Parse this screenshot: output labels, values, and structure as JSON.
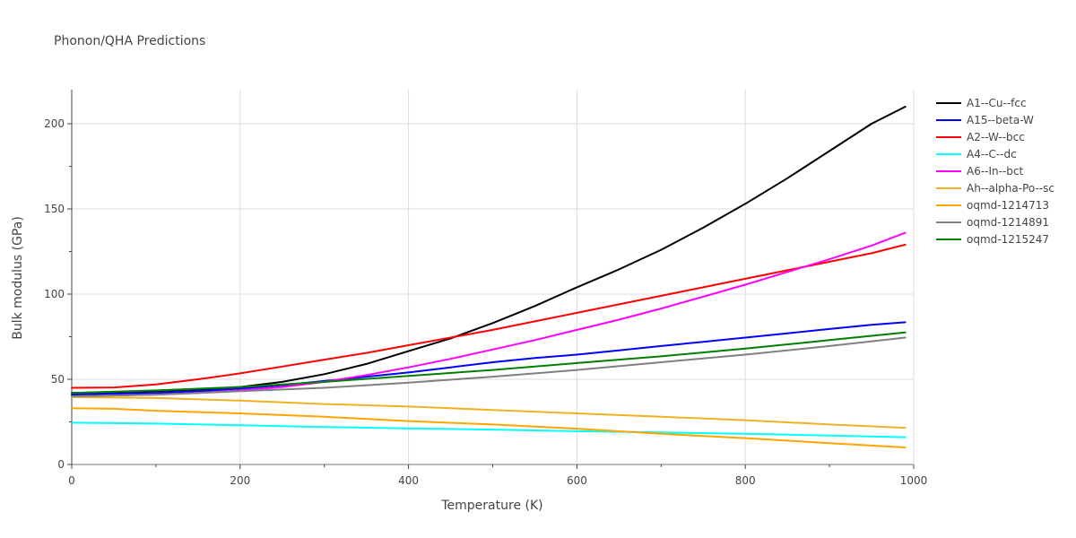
{
  "chart_data": {
    "type": "line",
    "title": "Phonon/QHA Predictions",
    "xlabel": "Temperature (K)",
    "ylabel": "Bulk modulus (GPa)",
    "xlim": [
      0,
      1000
    ],
    "ylim": [
      0,
      220
    ],
    "xticks": [
      0,
      200,
      400,
      600,
      800,
      1000
    ],
    "yticks": [
      0,
      50,
      100,
      150,
      200
    ],
    "grid": true,
    "legend_position": "right",
    "series": [
      {
        "name": "A1--Cu--fcc",
        "color": "#000000",
        "x": [
          0,
          50,
          100,
          150,
          200,
          250,
          300,
          350,
          400,
          450,
          500,
          550,
          600,
          650,
          700,
          750,
          800,
          850,
          900,
          950,
          990
        ],
        "y": [
          42,
          42.5,
          43,
          44,
          45.5,
          48.5,
          53,
          59,
          66.5,
          74,
          83,
          93,
          104,
          114.5,
          126,
          139,
          153,
          168,
          184,
          200,
          210
        ]
      },
      {
        "name": "A15--beta-W",
        "color": "#0000ff",
        "x": [
          0,
          50,
          100,
          150,
          200,
          250,
          300,
          350,
          400,
          450,
          500,
          550,
          600,
          650,
          700,
          750,
          800,
          850,
          900,
          950,
          990
        ],
        "y": [
          41,
          41.5,
          42,
          43,
          44.5,
          46.5,
          49,
          51.5,
          54,
          57,
          60,
          62.5,
          64.5,
          67,
          69.5,
          72,
          74.5,
          77,
          79.5,
          82,
          83.5
        ]
      },
      {
        "name": "A2--W--bcc",
        "color": "#ff0000",
        "x": [
          0,
          50,
          100,
          150,
          200,
          250,
          300,
          350,
          400,
          450,
          500,
          550,
          600,
          650,
          700,
          750,
          800,
          850,
          900,
          950,
          990
        ],
        "y": [
          45,
          45.2,
          47,
          50,
          53.5,
          57.5,
          61.5,
          65.5,
          70,
          74.5,
          79,
          84,
          89,
          94,
          99,
          104,
          109,
          114,
          119,
          124,
          129
        ]
      },
      {
        "name": "A4--C--dc",
        "color": "#00ffff",
        "x": [
          0,
          100,
          200,
          300,
          400,
          500,
          600,
          700,
          800,
          900,
          990
        ],
        "y": [
          24.5,
          24,
          23,
          22,
          21.2,
          20.5,
          19.5,
          18.8,
          18,
          17,
          16
        ]
      },
      {
        "name": "A6--In--bct",
        "color": "#ff00ff",
        "x": [
          0,
          50,
          100,
          150,
          200,
          250,
          300,
          350,
          400,
          450,
          500,
          550,
          600,
          650,
          700,
          750,
          800,
          850,
          900,
          950,
          990
        ],
        "y": [
          40,
          40.5,
          41,
          42,
          43.5,
          45.5,
          48.5,
          52.5,
          57,
          62,
          67.5,
          73,
          79,
          85,
          91.5,
          98.5,
          105.5,
          113,
          120.5,
          128.5,
          136
        ]
      },
      {
        "name": "Ah--alpha-Po--sc",
        "color": "#f0b020",
        "x": [
          0,
          100,
          200,
          300,
          400,
          500,
          600,
          700,
          800,
          900,
          990
        ],
        "y": [
          39.5,
          39,
          37.5,
          35.5,
          34,
          32,
          30,
          28,
          26,
          23.5,
          21.5
        ]
      },
      {
        "name": "oqmd-1214713",
        "color": "#ffa500",
        "x": [
          0,
          50,
          100,
          200,
          300,
          400,
          500,
          600,
          700,
          800,
          900,
          990
        ],
        "y": [
          33,
          32.7,
          31.5,
          30,
          28,
          25.5,
          23.5,
          21,
          18,
          15.5,
          12.5,
          10
        ]
      },
      {
        "name": "oqmd-1214891",
        "color": "#808080",
        "x": [
          0,
          100,
          200,
          300,
          400,
          500,
          600,
          700,
          800,
          900,
          990
        ],
        "y": [
          40,
          41,
          43,
          45,
          48,
          51.5,
          55.5,
          60,
          64.5,
          69.5,
          74.5
        ]
      },
      {
        "name": "oqmd-1215247",
        "color": "#008000",
        "x": [
          0,
          100,
          200,
          300,
          400,
          500,
          600,
          700,
          800,
          900,
          990
        ],
        "y": [
          42,
          43.5,
          45.5,
          48.5,
          52,
          55.5,
          59.5,
          63.5,
          68,
          73,
          77.5
        ]
      }
    ]
  }
}
